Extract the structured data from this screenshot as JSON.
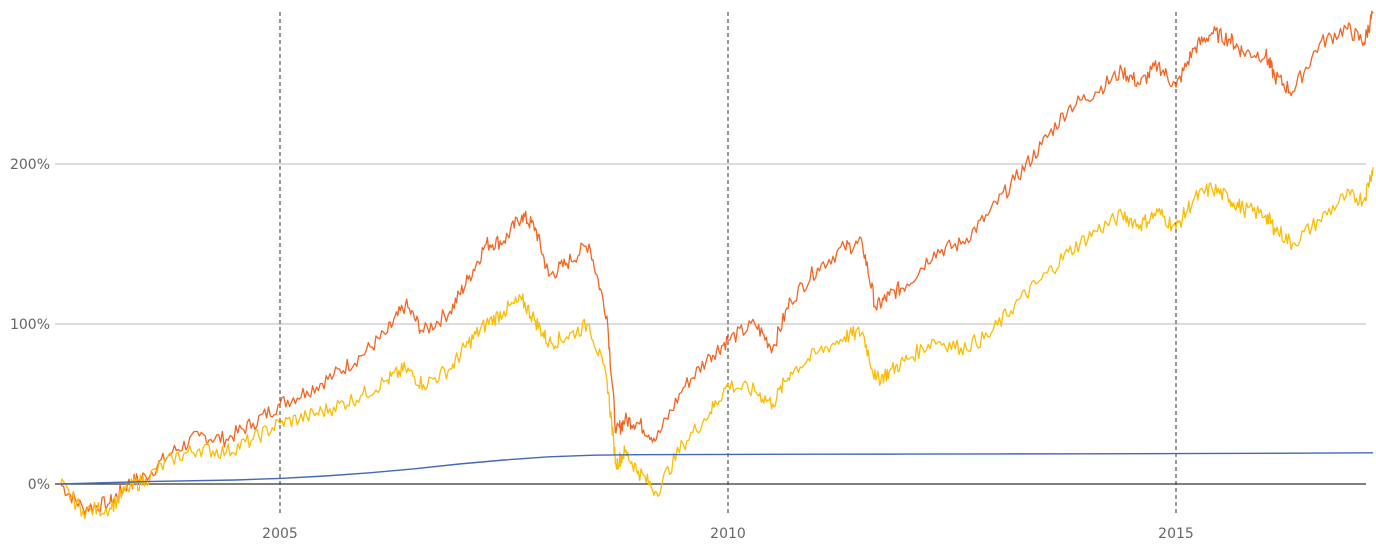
{
  "chart_data": {
    "type": "line",
    "title": "",
    "xlabel": "",
    "ylabel": "",
    "x_ticks": [
      "2005",
      "2010",
      "2015"
    ],
    "y_ticks": [
      "0%",
      "100%",
      "200%"
    ],
    "xlim": [
      2002.5,
      2017.2
    ],
    "ylim": [
      -20,
      300
    ],
    "grid": true,
    "legend": "none",
    "series": [
      {
        "color": "#f26522",
        "x": [
          2002.55,
          2002.8,
          2003.1,
          2003.3,
          2003.5,
          2003.8,
          2004.1,
          2004.4,
          2004.7,
          2005.0,
          2005.3,
          2005.6,
          2005.9,
          2006.2,
          2006.4,
          2006.6,
          2006.9,
          2007.1,
          2007.3,
          2007.5,
          2007.7,
          2007.85,
          2008.0,
          2008.2,
          2008.45,
          2008.65,
          2008.75,
          2008.85,
          2009.0,
          2009.2,
          2009.5,
          2009.8,
          2010.0,
          2010.3,
          2010.5,
          2010.7,
          2011.0,
          2011.3,
          2011.5,
          2011.65,
          2011.8,
          2012.0,
          2012.3,
          2012.6,
          2012.9,
          2013.2,
          2013.5,
          2013.8,
          2014.1,
          2014.4,
          2014.6,
          2014.8,
          2015.0,
          2015.2,
          2015.4,
          2015.6,
          2015.75,
          2016.0,
          2016.1,
          2016.3,
          2016.6,
          2016.9,
          2017.1,
          2017.2
        ],
        "values": [
          0,
          -15,
          -12,
          0,
          5,
          20,
          30,
          28,
          38,
          50,
          58,
          68,
          80,
          95,
          112,
          95,
          108,
          128,
          150,
          152,
          168,
          160,
          130,
          138,
          150,
          105,
          32,
          40,
          38,
          28,
          60,
          80,
          90,
          100,
          85,
          115,
          135,
          148,
          150,
          110,
          118,
          125,
          145,
          150,
          168,
          190,
          212,
          235,
          245,
          258,
          250,
          262,
          248,
          272,
          282,
          278,
          270,
          268,
          255,
          245,
          275,
          285,
          276,
          295
        ]
      },
      {
        "color": "#fbbc05",
        "x": [
          2002.55,
          2002.8,
          2003.1,
          2003.3,
          2003.5,
          2003.8,
          2004.1,
          2004.4,
          2004.7,
          2005.0,
          2005.3,
          2005.6,
          2005.9,
          2006.2,
          2006.4,
          2006.6,
          2006.9,
          2007.1,
          2007.3,
          2007.5,
          2007.7,
          2007.85,
          2008.0,
          2008.2,
          2008.45,
          2008.65,
          2008.75,
          2008.85,
          2009.0,
          2009.2,
          2009.5,
          2009.8,
          2010.0,
          2010.3,
          2010.5,
          2010.7,
          2011.0,
          2011.3,
          2011.5,
          2011.65,
          2011.8,
          2012.0,
          2012.3,
          2012.6,
          2012.9,
          2013.2,
          2013.5,
          2013.8,
          2014.1,
          2014.4,
          2014.6,
          2014.8,
          2015.0,
          2015.2,
          2015.4,
          2015.6,
          2015.75,
          2016.0,
          2016.1,
          2016.3,
          2016.6,
          2016.9,
          2017.1,
          2017.2
        ],
        "values": [
          0,
          -17,
          -15,
          -3,
          3,
          16,
          22,
          20,
          28,
          38,
          42,
          48,
          55,
          65,
          72,
          62,
          72,
          88,
          100,
          108,
          115,
          102,
          88,
          92,
          100,
          65,
          12,
          20,
          8,
          -5,
          25,
          45,
          62,
          58,
          50,
          70,
          82,
          92,
          95,
          65,
          70,
          78,
          90,
          85,
          92,
          112,
          128,
          145,
          158,
          168,
          162,
          170,
          160,
          178,
          185,
          178,
          172,
          168,
          160,
          150,
          165,
          180,
          178,
          198
        ]
      },
      {
        "color": "#4468b6",
        "x": [
          2002.55,
          2003.5,
          2004.5,
          2005.0,
          2005.5,
          2006.0,
          2006.5,
          2007.0,
          2007.5,
          2008.0,
          2008.5,
          2009.0,
          2010.0,
          2011.0,
          2012.0,
          2013.0,
          2014.0,
          2015.0,
          2016.0,
          2017.2
        ],
        "values": [
          0,
          1.5,
          2.5,
          3.5,
          5,
          7,
          9.5,
          12.5,
          15,
          17,
          18,
          18.3,
          18.5,
          18.6,
          18.7,
          18.8,
          18.9,
          19,
          19.2,
          19.5
        ]
      }
    ]
  }
}
